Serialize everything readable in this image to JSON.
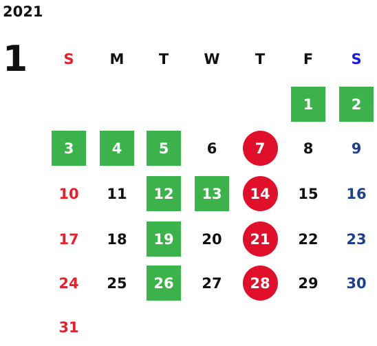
{
  "year": "2021",
  "month": "1",
  "weekdays": [
    {
      "label": "S",
      "type": "sun"
    },
    {
      "label": "M",
      "type": ""
    },
    {
      "label": "T",
      "type": ""
    },
    {
      "label": "W",
      "type": ""
    },
    {
      "label": "T",
      "type": ""
    },
    {
      "label": "F",
      "type": ""
    },
    {
      "label": "S",
      "type": "sat"
    }
  ],
  "weeks": [
    [
      null,
      null,
      null,
      null,
      null,
      {
        "d": "1",
        "mark": "green"
      },
      {
        "d": "2",
        "mark": "green"
      }
    ],
    [
      {
        "d": "3",
        "mark": "green"
      },
      {
        "d": "4",
        "mark": "green"
      },
      {
        "d": "5",
        "mark": "green"
      },
      {
        "d": "6",
        "mark": ""
      },
      {
        "d": "7",
        "mark": "red"
      },
      {
        "d": "8",
        "mark": ""
      },
      {
        "d": "9",
        "mark": ""
      }
    ],
    [
      {
        "d": "10",
        "mark": ""
      },
      {
        "d": "11",
        "mark": ""
      },
      {
        "d": "12",
        "mark": "green"
      },
      {
        "d": "13",
        "mark": "green"
      },
      {
        "d": "14",
        "mark": "red"
      },
      {
        "d": "15",
        "mark": ""
      },
      {
        "d": "16",
        "mark": ""
      }
    ],
    [
      {
        "d": "17",
        "mark": ""
      },
      {
        "d": "18",
        "mark": ""
      },
      {
        "d": "19",
        "mark": "green"
      },
      {
        "d": "20",
        "mark": ""
      },
      {
        "d": "21",
        "mark": "red"
      },
      {
        "d": "22",
        "mark": ""
      },
      {
        "d": "23",
        "mark": ""
      }
    ],
    [
      {
        "d": "24",
        "mark": ""
      },
      {
        "d": "25",
        "mark": ""
      },
      {
        "d": "26",
        "mark": "green"
      },
      {
        "d": "27",
        "mark": ""
      },
      {
        "d": "28",
        "mark": "red"
      },
      {
        "d": "29",
        "mark": ""
      },
      {
        "d": "30",
        "mark": ""
      }
    ],
    [
      {
        "d": "31",
        "mark": ""
      },
      null,
      null,
      null,
      null,
      null,
      null
    ]
  ],
  "colors": {
    "green_mark": "#3cb34a",
    "red_mark": "#e0102a",
    "sunday": "#e8202a",
    "saturday": "#1e3f8f"
  }
}
